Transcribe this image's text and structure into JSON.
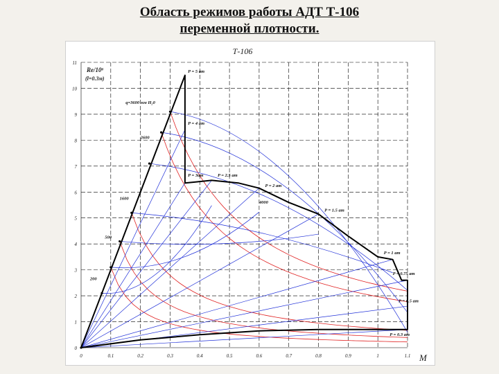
{
  "slide": {
    "title_line1": "Область режимов работы АДТ Т-106",
    "title_line2": "переменной плотности."
  },
  "chart_data": {
    "type": "line",
    "title": "Т-106",
    "xlabel": "M",
    "ylabel": "Re/10⁶",
    "ylabel_sub": "(l=0.3м)",
    "xlim": [
      0,
      1.1
    ],
    "ylim": [
      0,
      11
    ],
    "x_ticks": [
      "0",
      "0.1",
      "0.2",
      "0.3",
      "0.4",
      "0.5",
      "0.6",
      "0.7",
      "0.8",
      "0.9",
      "1",
      "1.1"
    ],
    "y_ticks": [
      "0",
      "1",
      "2",
      "3",
      "4",
      "5",
      "6",
      "7",
      "8",
      "9",
      "10",
      "11"
    ],
    "grid": true,
    "boundary": [
      {
        "x": 0,
        "y": 0
      },
      {
        "x": 0.35,
        "y": 10.5
      },
      {
        "x": 0.35,
        "y": 6.35
      },
      {
        "x": 0.38,
        "y": 6.38
      },
      {
        "x": 0.44,
        "y": 6.45
      },
      {
        "x": 0.53,
        "y": 6.35
      },
      {
        "x": 0.6,
        "y": 6.15
      },
      {
        "x": 0.7,
        "y": 5.6
      },
      {
        "x": 0.8,
        "y": 5.15
      },
      {
        "x": 0.9,
        "y": 4.3
      },
      {
        "x": 1.0,
        "y": 3.5
      },
      {
        "x": 1.05,
        "y": 3.4
      },
      {
        "x": 1.08,
        "y": 2.6
      },
      {
        "x": 1.1,
        "y": 2.6
      },
      {
        "x": 1.1,
        "y": 0.7
      },
      {
        "x": 1.0,
        "y": 0.7
      },
      {
        "x": 0.8,
        "y": 0.7
      },
      {
        "x": 0.6,
        "y": 0.65
      },
      {
        "x": 0.4,
        "y": 0.5
      },
      {
        "x": 0.2,
        "y": 0.3
      },
      {
        "x": 0,
        "y": 0
      }
    ],
    "left_edge_points": [
      {
        "x": 0,
        "y": 0
      },
      {
        "x": 0.07,
        "y": 2.1
      },
      {
        "x": 0.1,
        "y": 3.1
      },
      {
        "x": 0.13,
        "y": 4.1
      },
      {
        "x": 0.17,
        "y": 5.2
      },
      {
        "x": 0.23,
        "y": 7.1
      },
      {
        "x": 0.27,
        "y": 8.3
      },
      {
        "x": 0.3,
        "y": 9.1
      }
    ],
    "pressure_peaks": [
      {
        "x": 0.35,
        "y": 10.5
      },
      {
        "x": 0.35,
        "y": 8.4
      },
      {
        "x": 0.35,
        "y": 6.35
      },
      {
        "x": 0.44,
        "y": 6.45
      },
      {
        "x": 0.6,
        "y": 6.15
      },
      {
        "x": 0.8,
        "y": 5.15
      },
      {
        "x": 1.05,
        "y": 3.4
      },
      {
        "x": 1.1,
        "y": 2.6
      },
      {
        "x": 1.1,
        "y": 1.6
      },
      {
        "x": 1.1,
        "y": 0.7
      }
    ],
    "q_curves": [
      {
        "x": 0.3,
        "y": 9.1
      },
      {
        "x": 0.27,
        "y": 8.3
      },
      {
        "x": 0.17,
        "y": 5.2
      },
      {
        "x": 0.13,
        "y": 4.1
      },
      {
        "x": 0.1,
        "y": 3.1
      }
    ],
    "annotations": {
      "pressure": [
        "P = 5 ат",
        "P = 4 ат",
        "P = 3ат",
        "P = 2.5 ат",
        "P = 2 ат",
        "P = 1.5 ат",
        "P = 1 ат",
        "P = 0.75 ат",
        "P = 0.5 ат",
        "P = 0.3 ат"
      ],
      "q": [
        "q=3600 мм Н₂0",
        "2600",
        "1600",
        "500",
        "200"
      ],
      "extra": "4000"
    },
    "colors": {
      "boundary": "#000000",
      "pressure_lines": "#1f2fd8",
      "q_lines": "#e02020",
      "grid": "#000000"
    }
  }
}
